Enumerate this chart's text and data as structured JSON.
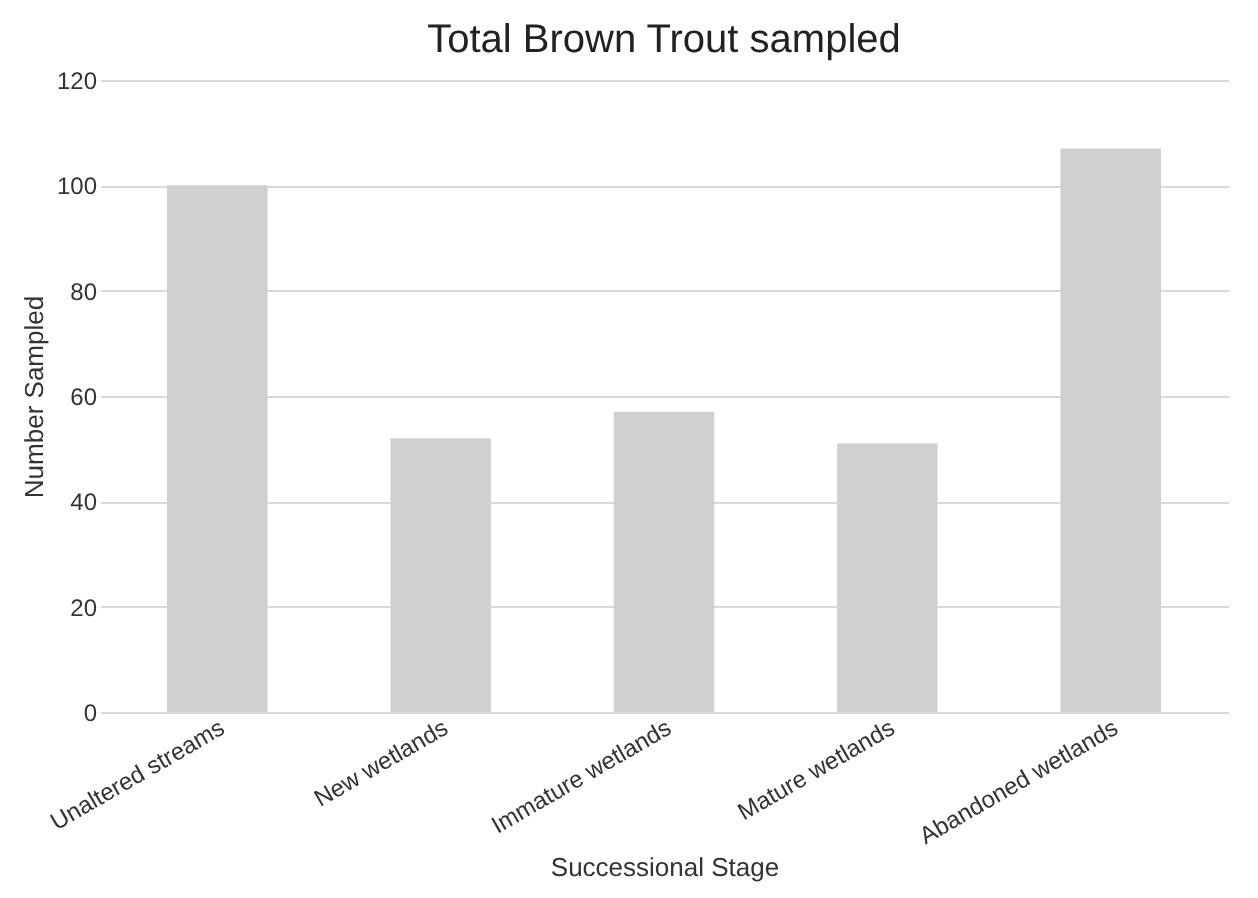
{
  "chart_data": {
    "type": "bar",
    "title": "Total Brown Trout sampled",
    "xlabel": "Successional Stage",
    "ylabel": "Number Sampled",
    "categories": [
      "Unaltered streams",
      "New wetlands",
      "Immature wetlands",
      "Mature wetlands",
      "Abandoned wetlands"
    ],
    "values": [
      100,
      52,
      57,
      51,
      107
    ],
    "color": "#d0d0d0",
    "ylim": [
      0,
      120
    ],
    "yticks": [
      0,
      20,
      40,
      60,
      80,
      100,
      120
    ],
    "grid": "y"
  }
}
